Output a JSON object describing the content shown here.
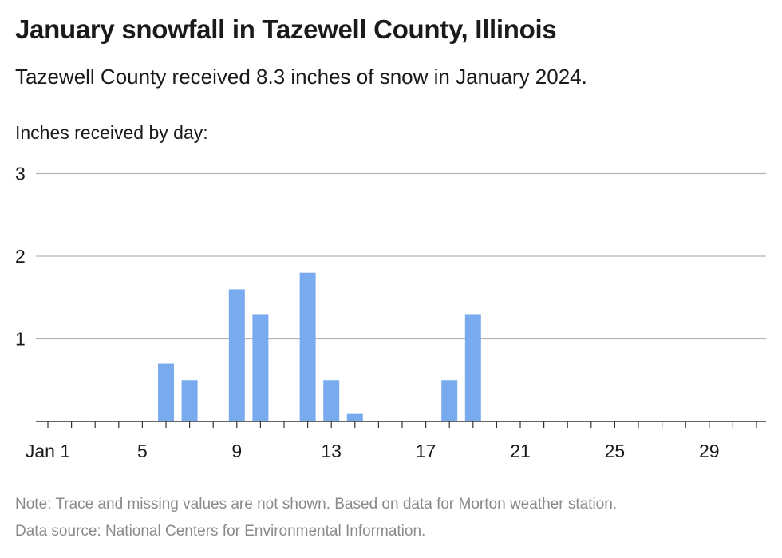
{
  "header": {
    "title": "January snowfall in Tazewell County, Illinois",
    "subtitle": "Tazewell County received 8.3 inches of snow in January 2024.",
    "y_axis_caption": "Inches received by day:"
  },
  "footer": {
    "note": "Note: Trace and missing values are not shown. Based on data for Morton weather station.",
    "source": "Data source: National Centers for Environmental Information."
  },
  "colors": {
    "bar": "#7aaaee",
    "gridline": "#b3b3b3",
    "axis": "#333333"
  },
  "chart_data": {
    "type": "bar",
    "title": "January snowfall in Tazewell County, Illinois",
    "ylabel": "Inches received by day:",
    "xlabel": "",
    "x_domain": [
      1,
      31
    ],
    "ylim": [
      0,
      3
    ],
    "yticks": [
      1,
      2,
      3
    ],
    "xticks": [
      {
        "day": 1,
        "label": "Jan 1"
      },
      {
        "day": 5,
        "label": "5"
      },
      {
        "day": 9,
        "label": "9"
      },
      {
        "day": 13,
        "label": "13"
      },
      {
        "day": 17,
        "label": "17"
      },
      {
        "day": 21,
        "label": "21"
      },
      {
        "day": 25,
        "label": "25"
      },
      {
        "day": 29,
        "label": "29"
      }
    ],
    "grid": true,
    "legend": "none",
    "series": [
      {
        "x": [
          6,
          7,
          9,
          10,
          12,
          13,
          14,
          18,
          19
        ],
        "values": [
          0.7,
          0.5,
          1.6,
          1.3,
          1.8,
          0.5,
          0.1,
          0.5,
          1.3
        ]
      }
    ]
  }
}
